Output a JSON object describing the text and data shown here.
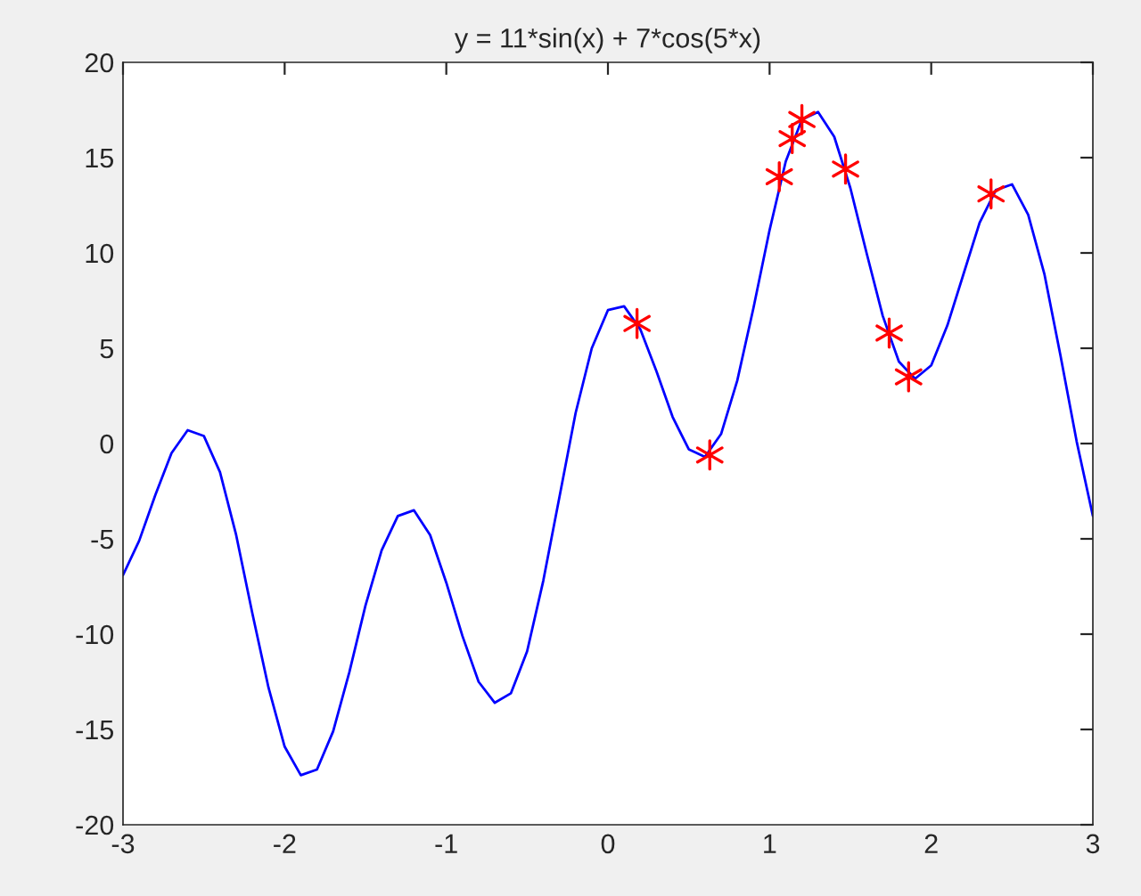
{
  "chart_data": {
    "type": "line",
    "title": "y = 11*sin(x) + 7*cos(5*x)",
    "series": [
      {
        "color": "#0000ff",
        "marker": "none",
        "line_style": "solid",
        "x": [
          -3.0,
          -2.9,
          -2.8,
          -2.7,
          -2.6,
          -2.5,
          -2.4,
          -2.3,
          -2.2,
          -2.1,
          -2.0,
          -1.9,
          -1.8,
          -1.7,
          -1.6,
          -1.5,
          -1.4,
          -1.3,
          -1.2,
          -1.1,
          -1.0,
          -0.9,
          -0.8,
          -0.7,
          -0.6,
          -0.5,
          -0.4,
          -0.3,
          -0.2,
          -0.1,
          0.0,
          0.1,
          0.2,
          0.3,
          0.4,
          0.5,
          0.6,
          0.7,
          0.8,
          0.9,
          1.0,
          1.1,
          1.2,
          1.3,
          1.4,
          1.5,
          1.6,
          1.7,
          1.8,
          1.9,
          2.0,
          2.1,
          2.2,
          2.3,
          2.4,
          2.5,
          2.6,
          2.7,
          2.8,
          2.9,
          3.0
        ],
        "values": [
          -6.9,
          -5.1,
          -2.7,
          -0.5,
          0.7,
          0.4,
          -1.5,
          -4.8,
          -8.9,
          -12.8,
          -15.9,
          -17.4,
          -17.1,
          -15.1,
          -12.0,
          -8.5,
          -5.6,
          -3.8,
          -3.5,
          -4.8,
          -7.3,
          -10.1,
          -12.5,
          -13.6,
          -13.1,
          -10.9,
          -7.2,
          -2.8,
          1.6,
          5.0,
          7.0,
          7.2,
          6.0,
          3.8,
          1.4,
          -0.3,
          -0.7,
          0.5,
          3.3,
          7.1,
          11.2,
          14.8,
          17.0,
          17.4,
          16.1,
          13.4,
          10.0,
          6.7,
          4.3,
          3.4,
          4.1,
          6.2,
          8.9,
          11.6,
          13.3,
          13.6,
          12.0,
          8.9,
          4.6,
          0.1,
          -3.8
        ]
      },
      {
        "type": "scatter",
        "color": "#ff0000",
        "marker": "cross",
        "x": [
          0.18,
          0.63,
          1.06,
          1.14,
          1.2,
          1.47,
          1.74,
          1.86,
          2.37
        ],
        "values": [
          6.3,
          -0.6,
          14.0,
          16.0,
          17.0,
          14.4,
          5.8,
          3.5,
          13.1
        ]
      }
    ],
    "xlim": [
      -3,
      3
    ],
    "xticks": [
      -3,
      -2,
      -1,
      0,
      1,
      2,
      3
    ],
    "ylim": [
      -20,
      20
    ],
    "yticks": [
      -20,
      -15,
      -10,
      -5,
      0,
      5,
      10,
      15,
      20
    ],
    "grid": false,
    "legend": false
  }
}
